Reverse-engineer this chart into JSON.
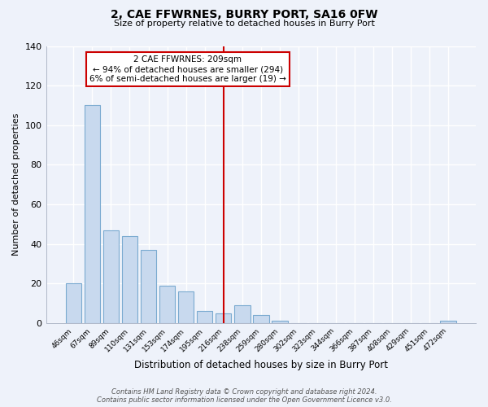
{
  "title": "2, CAE FFWRNES, BURRY PORT, SA16 0FW",
  "subtitle": "Size of property relative to detached houses in Burry Port",
  "xlabel": "Distribution of detached houses by size in Burry Port",
  "ylabel": "Number of detached properties",
  "bar_color": "#c8d9ee",
  "bar_edge_color": "#7aaad0",
  "categories": [
    "46sqm",
    "67sqm",
    "89sqm",
    "110sqm",
    "131sqm",
    "153sqm",
    "174sqm",
    "195sqm",
    "216sqm",
    "238sqm",
    "259sqm",
    "280sqm",
    "302sqm",
    "323sqm",
    "344sqm",
    "366sqm",
    "387sqm",
    "408sqm",
    "429sqm",
    "451sqm",
    "472sqm"
  ],
  "values": [
    20,
    110,
    47,
    44,
    37,
    19,
    16,
    6,
    5,
    9,
    4,
    1,
    0,
    0,
    0,
    0,
    0,
    0,
    0,
    0,
    1
  ],
  "ylim": [
    0,
    140
  ],
  "yticks": [
    0,
    20,
    40,
    60,
    80,
    100,
    120,
    140
  ],
  "vline_x": 8.0,
  "vline_color": "#cc0000",
  "annotation_text": "2 CAE FFWRNES: 209sqm\n← 94% of detached houses are smaller (294)\n6% of semi-detached houses are larger (19) →",
  "annotation_box_color": "#ffffff",
  "annotation_box_edge": "#cc0000",
  "footer_line1": "Contains HM Land Registry data © Crown copyright and database right 2024.",
  "footer_line2": "Contains public sector information licensed under the Open Government Licence v3.0.",
  "background_color": "#eef2fa",
  "plot_bg_color": "#eef2fa",
  "grid_color": "#ffffff",
  "spine_color": "#b0b8c8"
}
